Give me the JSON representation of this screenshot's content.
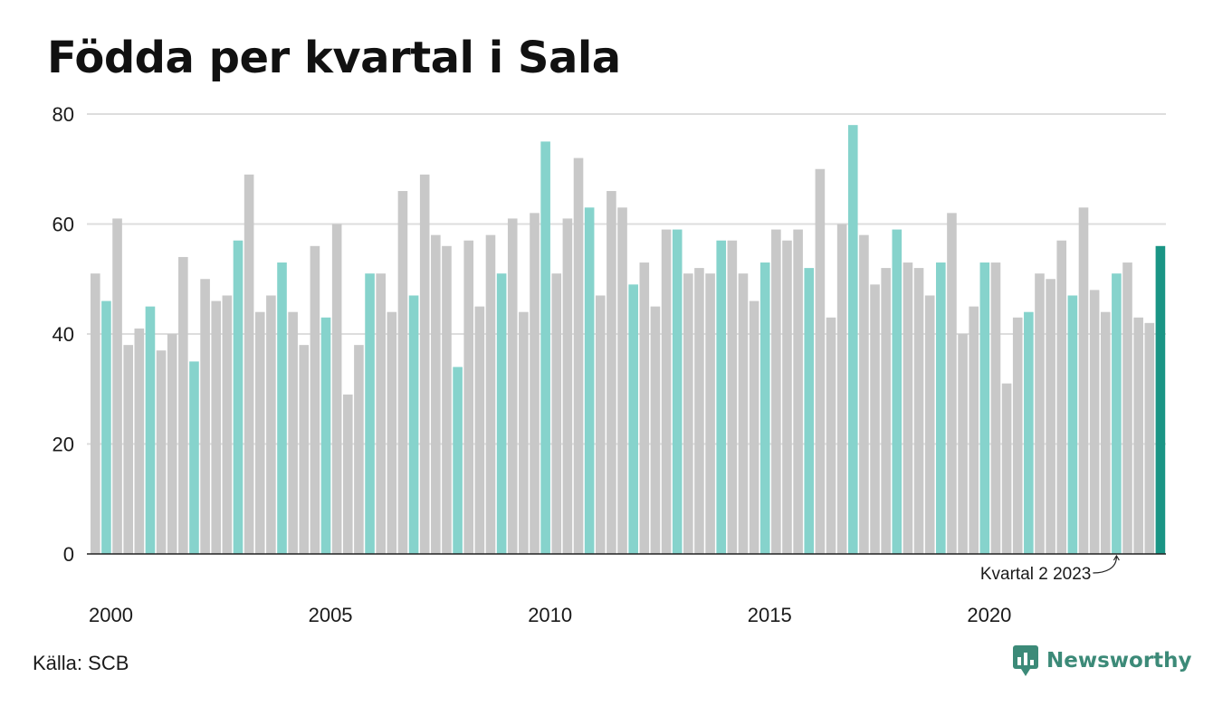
{
  "title": "Födda per kvartal i Sala",
  "source": "Källa: SCB",
  "brand": "Newsworthy",
  "colors": {
    "gray": "#c8c8c8",
    "q2": "#86d3cc",
    "highlight": "#1a9585",
    "grid": "#dddddd",
    "axis": "#222222",
    "brand": "#3c8a78"
  },
  "chart_data": {
    "type": "bar",
    "ylim": [
      0,
      80
    ],
    "yticks": [
      0,
      20,
      40,
      60,
      80
    ],
    "xtick_labels": [
      {
        "label": "2000",
        "year": 2000
      },
      {
        "label": "2005",
        "year": 2005
      },
      {
        "label": "2010",
        "year": 2010
      },
      {
        "label": "2015",
        "year": 2015
      },
      {
        "label": "2020",
        "year": 2020
      }
    ],
    "first_period": "2000 Q1",
    "values": [
      51,
      46,
      61,
      38,
      41,
      45,
      37,
      40,
      54,
      35,
      50,
      46,
      47,
      57,
      69,
      44,
      47,
      53,
      44,
      38,
      56,
      43,
      60,
      29,
      38,
      51,
      51,
      44,
      66,
      47,
      69,
      58,
      56,
      34,
      57,
      45,
      58,
      51,
      61,
      44,
      62,
      75,
      51,
      61,
      72,
      63,
      47,
      66,
      63,
      49,
      53,
      45,
      59,
      59,
      51,
      52,
      51,
      57,
      57,
      51,
      46,
      53,
      59,
      57,
      59,
      52,
      70,
      43,
      60,
      78,
      58,
      49,
      52,
      59,
      53,
      52,
      47,
      53,
      62,
      40,
      45,
      53,
      53,
      31,
      43,
      44,
      51,
      50,
      57,
      47,
      63,
      48,
      44,
      51,
      53,
      43,
      42,
      56
    ],
    "annotation": {
      "text": "Kvartal 2 2023",
      "index": 93
    },
    "highlight_index": 97
  }
}
